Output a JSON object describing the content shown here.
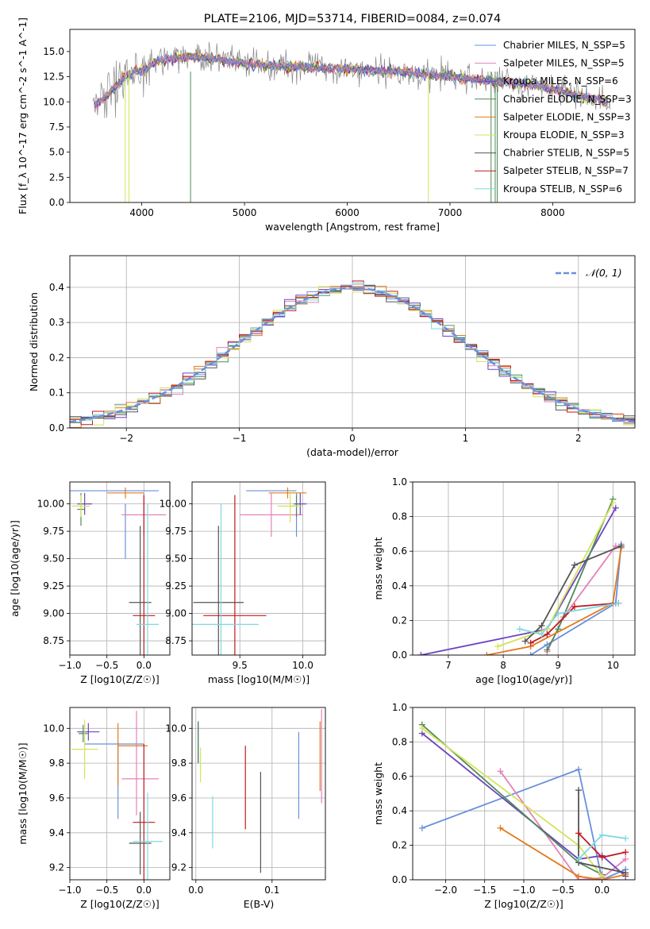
{
  "colors": [
    "#6a8fdc",
    "#e680b8",
    "#6f42c1",
    "#4e8a57",
    "#e07b1f",
    "#d4e35a",
    "#555555",
    "#c0191f",
    "#7ed9e0"
  ],
  "chart_data": [
    {
      "id": "spectrum",
      "type": "line",
      "title": "PLATE=2106, MJD=53714, FIBERID=0084, z=0.074",
      "xlabel": "wavelength [Angstrom, rest frame]",
      "ylabel": "Flux [f_λ 10^-17 erg cm^-2 s^-1 A^-1]",
      "xlim": [
        3300,
        8800
      ],
      "ylim": [
        0,
        17.2
      ],
      "xticks": [
        "4000",
        "5000",
        "6000",
        "7000",
        "8000"
      ],
      "yticks": [
        "0.0",
        "2.5",
        "5.0",
        "7.5",
        "10.0",
        "12.5",
        "15.0"
      ],
      "series": [
        {
          "name": "Chabrier MILES, N_SSP=5"
        },
        {
          "name": "Salpeter MILES, N_SSP=5"
        },
        {
          "name": "Kroupa MILES, N_SSP=6"
        },
        {
          "name": "Chabrier ELODIE, N_SSP=3"
        },
        {
          "name": "Salpeter ELODIE, N_SSP=3"
        },
        {
          "name": "Kroupa ELODIE, N_SSP=3"
        },
        {
          "name": "Chabrier STELIB, N_SSP=5"
        },
        {
          "name": "Salpeter STELIB, N_SSP=7"
        },
        {
          "name": "Kroupa STELIB, N_SSP=6"
        }
      ],
      "data_color": "#888888",
      "model_x": [
        3540,
        3700,
        3850,
        4000,
        4150,
        4300,
        4500,
        4700,
        4900,
        5100,
        5300,
        5500,
        5700,
        5900,
        6100,
        6300,
        6500,
        6700,
        6900,
        7100,
        7300,
        7500,
        7700,
        7900,
        8100,
        8300,
        8550
      ],
      "model_y": [
        9.6,
        11.0,
        12.6,
        13.2,
        14.0,
        14.3,
        14.5,
        14.3,
        14.0,
        13.7,
        13.6,
        13.5,
        13.4,
        13.3,
        13.2,
        13.1,
        13.0,
        12.8,
        12.6,
        12.4,
        12.2,
        12.0,
        11.8,
        11.5,
        11.0,
        10.5,
        10.0
      ]
    },
    {
      "id": "residuals",
      "type": "histogram",
      "xlabel": "(data-model)/error",
      "ylabel": "Normed distribution",
      "xlim": [
        -2.5,
        2.5
      ],
      "ylim": [
        0,
        0.49
      ],
      "xticks": [
        "−2",
        "−1",
        "0",
        "1",
        "2"
      ],
      "yticks": [
        "0.0",
        "0.1",
        "0.2",
        "0.3",
        "0.4"
      ],
      "legend": "𝒩(0, 1)",
      "normal_color": "#6a8fdc"
    },
    {
      "id": "age-vs-Z",
      "type": "scatter",
      "xlabel": "Z [log10(Z/Z☉)]",
      "ylabel": "age [log10(age/yr)]",
      "xlim": [
        -1.0,
        0.35
      ],
      "ylim": [
        8.62,
        10.2
      ],
      "xticks": [
        "−1.0",
        "−0.5",
        "0.0"
      ],
      "yticks": [
        "8.75",
        "9.00",
        "9.25",
        "9.50",
        "9.75",
        "10.00"
      ],
      "points": [
        {
          "c": 0,
          "x": -0.45,
          "y": 10.12,
          "xe": 0.65,
          "ye": 0.0
        },
        {
          "c": 0,
          "x": -0.25,
          "y": 9.75,
          "xe": 0.0,
          "ye": 0.25
        },
        {
          "c": 1,
          "x": 0.0,
          "y": 9.9,
          "xe": 0.3,
          "ye": 0.2
        },
        {
          "c": 2,
          "x": -0.8,
          "y": 10.0,
          "xe": 0.1,
          "ye": 0.1
        },
        {
          "c": 3,
          "x": -0.85,
          "y": 9.95,
          "xe": 0.05,
          "ye": 0.15
        },
        {
          "c": 4,
          "x": -0.25,
          "y": 10.1,
          "xe": 0.25,
          "ye": 0.05
        },
        {
          "c": 5,
          "x": -0.85,
          "y": 9.98,
          "xe": 0.12,
          "ye": 0.1
        },
        {
          "c": 6,
          "x": -0.05,
          "y": 9.1,
          "xe": 0.15,
          "ye": 0.7
        },
        {
          "c": 7,
          "x": 0.0,
          "y": 8.98,
          "xe": 0.15,
          "ye": 1.1
        },
        {
          "c": 8,
          "x": 0.05,
          "y": 8.9,
          "xe": 0.15,
          "ye": 1.1
        }
      ]
    },
    {
      "id": "age-vs-mass",
      "type": "scatter",
      "xlabel": "mass [log10(M/M☉)]",
      "ylabel": "",
      "xlim": [
        9.12,
        10.18
      ],
      "ylim": [
        8.62,
        10.2
      ],
      "xticks": [
        "9.5",
        "10.0"
      ],
      "yticks": [
        "8.75",
        "9.00",
        "9.25",
        "9.50",
        "9.75",
        "10.00"
      ],
      "points": [
        {
          "c": 0,
          "x": 9.75,
          "y": 10.12,
          "xe": 0.2,
          "ye": 0.0
        },
        {
          "c": 0,
          "x": 9.95,
          "y": 9.9,
          "xe": 0.0,
          "ye": 0.2
        },
        {
          "c": 1,
          "x": 9.75,
          "y": 9.9,
          "xe": 0.25,
          "ye": 0.2
        },
        {
          "c": 2,
          "x": 9.98,
          "y": 10.0,
          "xe": 0.05,
          "ye": 0.1
        },
        {
          "c": 3,
          "x": 9.95,
          "y": 9.98,
          "xe": 0.05,
          "ye": 0.1
        },
        {
          "c": 4,
          "x": 9.88,
          "y": 10.1,
          "xe": 0.15,
          "ye": 0.05
        },
        {
          "c": 5,
          "x": 9.9,
          "y": 9.98,
          "xe": 0.1,
          "ye": 0.15
        },
        {
          "c": 6,
          "x": 9.33,
          "y": 9.1,
          "xe": 0.2,
          "ye": 0.7
        },
        {
          "c": 7,
          "x": 9.46,
          "y": 8.98,
          "xe": 0.25,
          "ye": 1.1
        },
        {
          "c": 8,
          "x": 9.35,
          "y": 8.9,
          "xe": 0.3,
          "ye": 1.1
        }
      ]
    },
    {
      "id": "weight-vs-age",
      "type": "line",
      "xlabel": "age [log10(age/yr)]",
      "ylabel": "mass weight",
      "xlim": [
        6.35,
        10.4
      ],
      "ylim": [
        0,
        1.0
      ],
      "xticks": [
        "7",
        "8",
        "9",
        "10"
      ],
      "yticks": [
        "0.0",
        "0.2",
        "0.4",
        "0.6",
        "0.8",
        "1.0"
      ],
      "series": [
        {
          "c": 0,
          "x": [
            8.5,
            8.8,
            10.05,
            10.15
          ],
          "y": [
            0.0,
            0.06,
            0.3,
            0.64
          ]
        },
        {
          "c": 1,
          "x": [
            8.8,
            9.1,
            10.05,
            10.15
          ],
          "y": [
            0.02,
            0.22,
            0.63,
            0.62
          ]
        },
        {
          "c": 2,
          "x": [
            6.5,
            8.8,
            10.05
          ],
          "y": [
            0.0,
            0.15,
            0.85
          ]
        },
        {
          "c": 3,
          "x": [
            8.8,
            9.0,
            10.0
          ],
          "y": [
            0.03,
            0.15,
            0.9
          ]
        },
        {
          "c": 4,
          "x": [
            7.7,
            8.5,
            10.0,
            10.15
          ],
          "y": [
            0.0,
            0.05,
            0.3,
            0.62
          ]
        },
        {
          "c": 5,
          "x": [
            7.9,
            8.8,
            10.0
          ],
          "y": [
            0.05,
            0.15,
            0.88
          ]
        },
        {
          "c": 6,
          "x": [
            8.4,
            8.7,
            9.3,
            10.15
          ],
          "y": [
            0.08,
            0.17,
            0.52,
            0.63
          ]
        },
        {
          "c": 7,
          "x": [
            8.5,
            8.8,
            9.3,
            10.1
          ],
          "y": [
            0.07,
            0.12,
            0.28,
            0.3
          ]
        },
        {
          "c": 8,
          "x": [
            8.3,
            8.7,
            9.0,
            10.1
          ],
          "y": [
            0.15,
            0.12,
            0.24,
            0.3
          ]
        }
      ]
    },
    {
      "id": "mass-vs-Z",
      "type": "scatter",
      "xlabel": "Z [log10(Z/Z☉)]",
      "ylabel": "mass [log10(M/M☉)]",
      "xlim": [
        -1.0,
        0.35
      ],
      "ylim": [
        9.13,
        10.12
      ],
      "xticks": [
        "−1.0",
        "−0.5",
        "0.0"
      ],
      "yticks": [
        "9.2",
        "9.4",
        "9.6",
        "9.8",
        "10.0"
      ],
      "points": [
        {
          "c": 0,
          "x": -0.4,
          "y": 9.91,
          "xe": 0.4,
          "ye": 0.0
        },
        {
          "c": 0,
          "x": -0.35,
          "y": 9.7,
          "xe": 0.0,
          "ye": 0.22
        },
        {
          "c": 1,
          "x": -0.05,
          "y": 9.71,
          "xe": 0.25,
          "ye": 0.0
        },
        {
          "c": 1,
          "x": -0.1,
          "y": 9.8,
          "xe": 0.0,
          "ye": 0.3
        },
        {
          "c": 2,
          "x": -0.75,
          "y": 9.98,
          "xe": 0.15,
          "ye": 0.05
        },
        {
          "c": 3,
          "x": -0.82,
          "y": 9.97,
          "xe": 0.06,
          "ye": 0.05
        },
        {
          "c": 4,
          "x": -0.15,
          "y": 9.9,
          "xe": 0.2,
          "ye": 0.0
        },
        {
          "c": 4,
          "x": -0.35,
          "y": 9.85,
          "xe": 0.0,
          "ye": 0.18
        },
        {
          "c": 5,
          "x": -0.8,
          "y": 9.88,
          "xe": 0.18,
          "ye": 0.17
        },
        {
          "c": 6,
          "x": -0.05,
          "y": 9.34,
          "xe": 0.15,
          "ye": 0.18
        },
        {
          "c": 7,
          "x": 0.0,
          "y": 9.46,
          "xe": 0.15,
          "ye": 0.45
        },
        {
          "c": 8,
          "x": 0.05,
          "y": 9.35,
          "xe": 0.2,
          "ye": 0.28
        }
      ]
    },
    {
      "id": "mass-vs-ebv",
      "type": "scatter",
      "xlabel": "E(B-V)",
      "ylabel": "",
      "xlim": [
        -0.005,
        0.17
      ],
      "ylim": [
        9.13,
        10.12
      ],
      "xticks": [
        "0.0",
        "0.1"
      ],
      "yticks": [
        "9.2",
        "9.4",
        "9.6",
        "9.8",
        "10.0"
      ],
      "points": [
        {
          "c": 0,
          "x": 0.135,
          "y": 9.73,
          "xe": 0.0,
          "ye": 0.25
        },
        {
          "c": 1,
          "x": 0.165,
          "y": 9.84,
          "xe": 0.0,
          "ye": 0.27
        },
        {
          "c": 2,
          "x": 0.003,
          "y": 9.92,
          "xe": 0.0,
          "ye": 0.12
        },
        {
          "c": 3,
          "x": 0.003,
          "y": 9.92,
          "xe": 0.0,
          "ye": 0.12
        },
        {
          "c": 4,
          "x": 0.163,
          "y": 9.84,
          "xe": 0.0,
          "ye": 0.2
        },
        {
          "c": 5,
          "x": 0.006,
          "y": 9.79,
          "xe": 0.0,
          "ye": 0.1
        },
        {
          "c": 6,
          "x": 0.085,
          "y": 9.46,
          "xe": 0.0,
          "ye": 0.29
        },
        {
          "c": 7,
          "x": 0.065,
          "y": 9.66,
          "xe": 0.0,
          "ye": 0.24
        },
        {
          "c": 8,
          "x": 0.022,
          "y": 9.46,
          "xe": 0.0,
          "ye": 0.15
        }
      ]
    },
    {
      "id": "weight-vs-Z",
      "type": "line",
      "xlabel": "Z [log10(Z/Z☉)]",
      "ylabel": "mass weight",
      "xlim": [
        -2.42,
        0.42
      ],
      "ylim": [
        0,
        1.0
      ],
      "xticks": [
        "−2.0",
        "−1.5",
        "−1.0",
        "−0.5",
        "0.0"
      ],
      "yticks": [
        "0.0",
        "0.2",
        "0.4",
        "0.6",
        "0.8",
        "1.0"
      ],
      "series": [
        {
          "c": 0,
          "x": [
            -2.3,
            -0.3,
            0.0,
            0.3
          ],
          "y": [
            0.3,
            0.64,
            0.0,
            0.06
          ]
        },
        {
          "c": 1,
          "x": [
            -1.3,
            -0.3,
            0.0,
            0.3
          ],
          "y": [
            0.63,
            0.0,
            0.01,
            0.12
          ]
        },
        {
          "c": 2,
          "x": [
            -2.3,
            -0.3,
            0.0,
            0.3
          ],
          "y": [
            0.85,
            0.12,
            0.14,
            0.02
          ]
        },
        {
          "c": 3,
          "x": [
            -2.3,
            -0.3,
            0.0
          ],
          "y": [
            0.9,
            0.1,
            0.03
          ]
        },
        {
          "c": 4,
          "x": [
            -1.3,
            -0.3,
            0.0,
            0.3
          ],
          "y": [
            0.3,
            0.02,
            0.0,
            0.03
          ]
        },
        {
          "c": 5,
          "x": [
            -2.3,
            -0.3,
            0.0
          ],
          "y": [
            0.88,
            0.2,
            0.02
          ]
        },
        {
          "c": 6,
          "x": [
            -0.3,
            -0.3,
            0.3
          ],
          "y": [
            0.52,
            0.1,
            0.04
          ]
        },
        {
          "c": 7,
          "x": [
            -0.3,
            0.0,
            0.3
          ],
          "y": [
            0.27,
            0.13,
            0.16
          ]
        },
        {
          "c": 8,
          "x": [
            -0.3,
            0.0,
            0.3
          ],
          "y": [
            0.12,
            0.26,
            0.24
          ]
        }
      ]
    }
  ]
}
